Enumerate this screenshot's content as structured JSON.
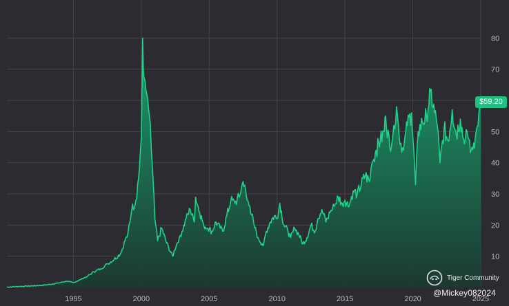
{
  "colors": {
    "background": "#2b2b31",
    "line": "#1fd38a",
    "area_top": "#1aa873",
    "area_bottom": "#1a3a31",
    "grid": "#44454d",
    "badge": "#19c27f",
    "tick_text": "#b9bbc2"
  },
  "price_badge": {
    "label": "$59.20"
  },
  "watermark": {
    "brand": "Tiger Community",
    "icon": "tiger-community-logo"
  },
  "handle": "@Mickey082024",
  "chart_data": {
    "type": "area",
    "title": "",
    "xlabel": "",
    "ylabel": "",
    "grid": true,
    "y_axis_position": "right",
    "xlim": [
      1990.1,
      2025.0
    ],
    "ylim": [
      0,
      90
    ],
    "x_ticks": [
      "1995",
      "2000",
      "2005",
      "2010",
      "2015",
      "2020",
      "2025"
    ],
    "y_ticks": [
      "10",
      "20",
      "30",
      "40",
      "50",
      "60",
      "70",
      "80"
    ],
    "last_price": 59.2,
    "series": [
      {
        "x": [
          1990.1,
          1991.0,
          1992.0,
          1993.0,
          1994.0,
          1994.5,
          1995.0,
          1995.5,
          1996.0,
          1996.5,
          1997.0,
          1997.5,
          1998.0,
          1998.5,
          1998.8,
          1999.0,
          1999.3,
          1999.6,
          1999.8,
          2000.0,
          2000.1,
          2000.2,
          2000.4,
          2000.6,
          2000.8,
          2001.0,
          2001.2,
          2001.5,
          2001.8,
          2002.0,
          2002.3,
          2002.6,
          2002.8,
          2003.0,
          2003.3,
          2003.6,
          2003.9,
          2004.0,
          2004.3,
          2004.6,
          2004.9,
          2005.2,
          2005.5,
          2005.8,
          2006.0,
          2006.3,
          2006.6,
          2006.9,
          2007.2,
          2007.5,
          2007.8,
          2008.0,
          2008.3,
          2008.6,
          2008.9,
          2009.0,
          2009.2,
          2009.5,
          2009.8,
          2010.0,
          2010.2,
          2010.5,
          2010.8,
          2011.0,
          2011.3,
          2011.6,
          2011.9,
          2012.2,
          2012.5,
          2012.8,
          2013.0,
          2013.3,
          2013.6,
          2013.9,
          2014.2,
          2014.5,
          2014.8,
          2015.0,
          2015.3,
          2015.6,
          2015.9,
          2016.2,
          2016.5,
          2016.8,
          2017.0,
          2017.3,
          2017.6,
          2017.9,
          2018.0,
          2018.3,
          2018.6,
          2018.8,
          2019.0,
          2019.3,
          2019.6,
          2019.9,
          2020.0,
          2020.2,
          2020.4,
          2020.7,
          2021.0,
          2021.3,
          2021.6,
          2021.8,
          2022.0,
          2022.3,
          2022.6,
          2022.9,
          2023.2,
          2023.5,
          2023.8,
          2024.0,
          2024.3,
          2024.6,
          2024.8,
          2025.0
        ],
        "y": [
          0.1,
          0.3,
          0.5,
          0.8,
          1.5,
          2.0,
          1.5,
          2.5,
          3.5,
          5.0,
          6.0,
          7.5,
          9.0,
          11.0,
          15.0,
          17.0,
          25.0,
          28.0,
          35.0,
          48.0,
          80.0,
          67.0,
          62.0,
          55.0,
          40.0,
          22.0,
          15.0,
          19.0,
          15.0,
          13.0,
          10.0,
          14.0,
          16.0,
          18.0,
          22.0,
          25.0,
          21.0,
          29.0,
          24.0,
          20.0,
          19.0,
          18.0,
          21.0,
          19.0,
          18.0,
          23.0,
          28.0,
          27.0,
          29.0,
          34.0,
          28.0,
          26.0,
          20.0,
          16.0,
          14.0,
          13.5,
          18.0,
          21.0,
          23.0,
          22.0,
          27.0,
          20.0,
          18.0,
          16.0,
          19.0,
          17.0,
          14.0,
          16.0,
          20.0,
          18.0,
          22.0,
          25.0,
          21.0,
          24.0,
          26.0,
          29.0,
          27.0,
          28.0,
          26.0,
          31.0,
          30.0,
          33.0,
          36.0,
          34.0,
          40.0,
          44.0,
          47.0,
          50.0,
          55.0,
          45.0,
          52.0,
          58.0,
          48.0,
          44.0,
          52.0,
          56.0,
          48.0,
          33.0,
          50.0,
          53.0,
          55.0,
          63.0,
          56.0,
          52.0,
          40.0,
          51.0,
          47.0,
          57.0,
          49.0,
          54.0,
          46.0,
          50.0,
          44.0,
          48.0,
          52.0,
          59.2
        ]
      }
    ]
  }
}
